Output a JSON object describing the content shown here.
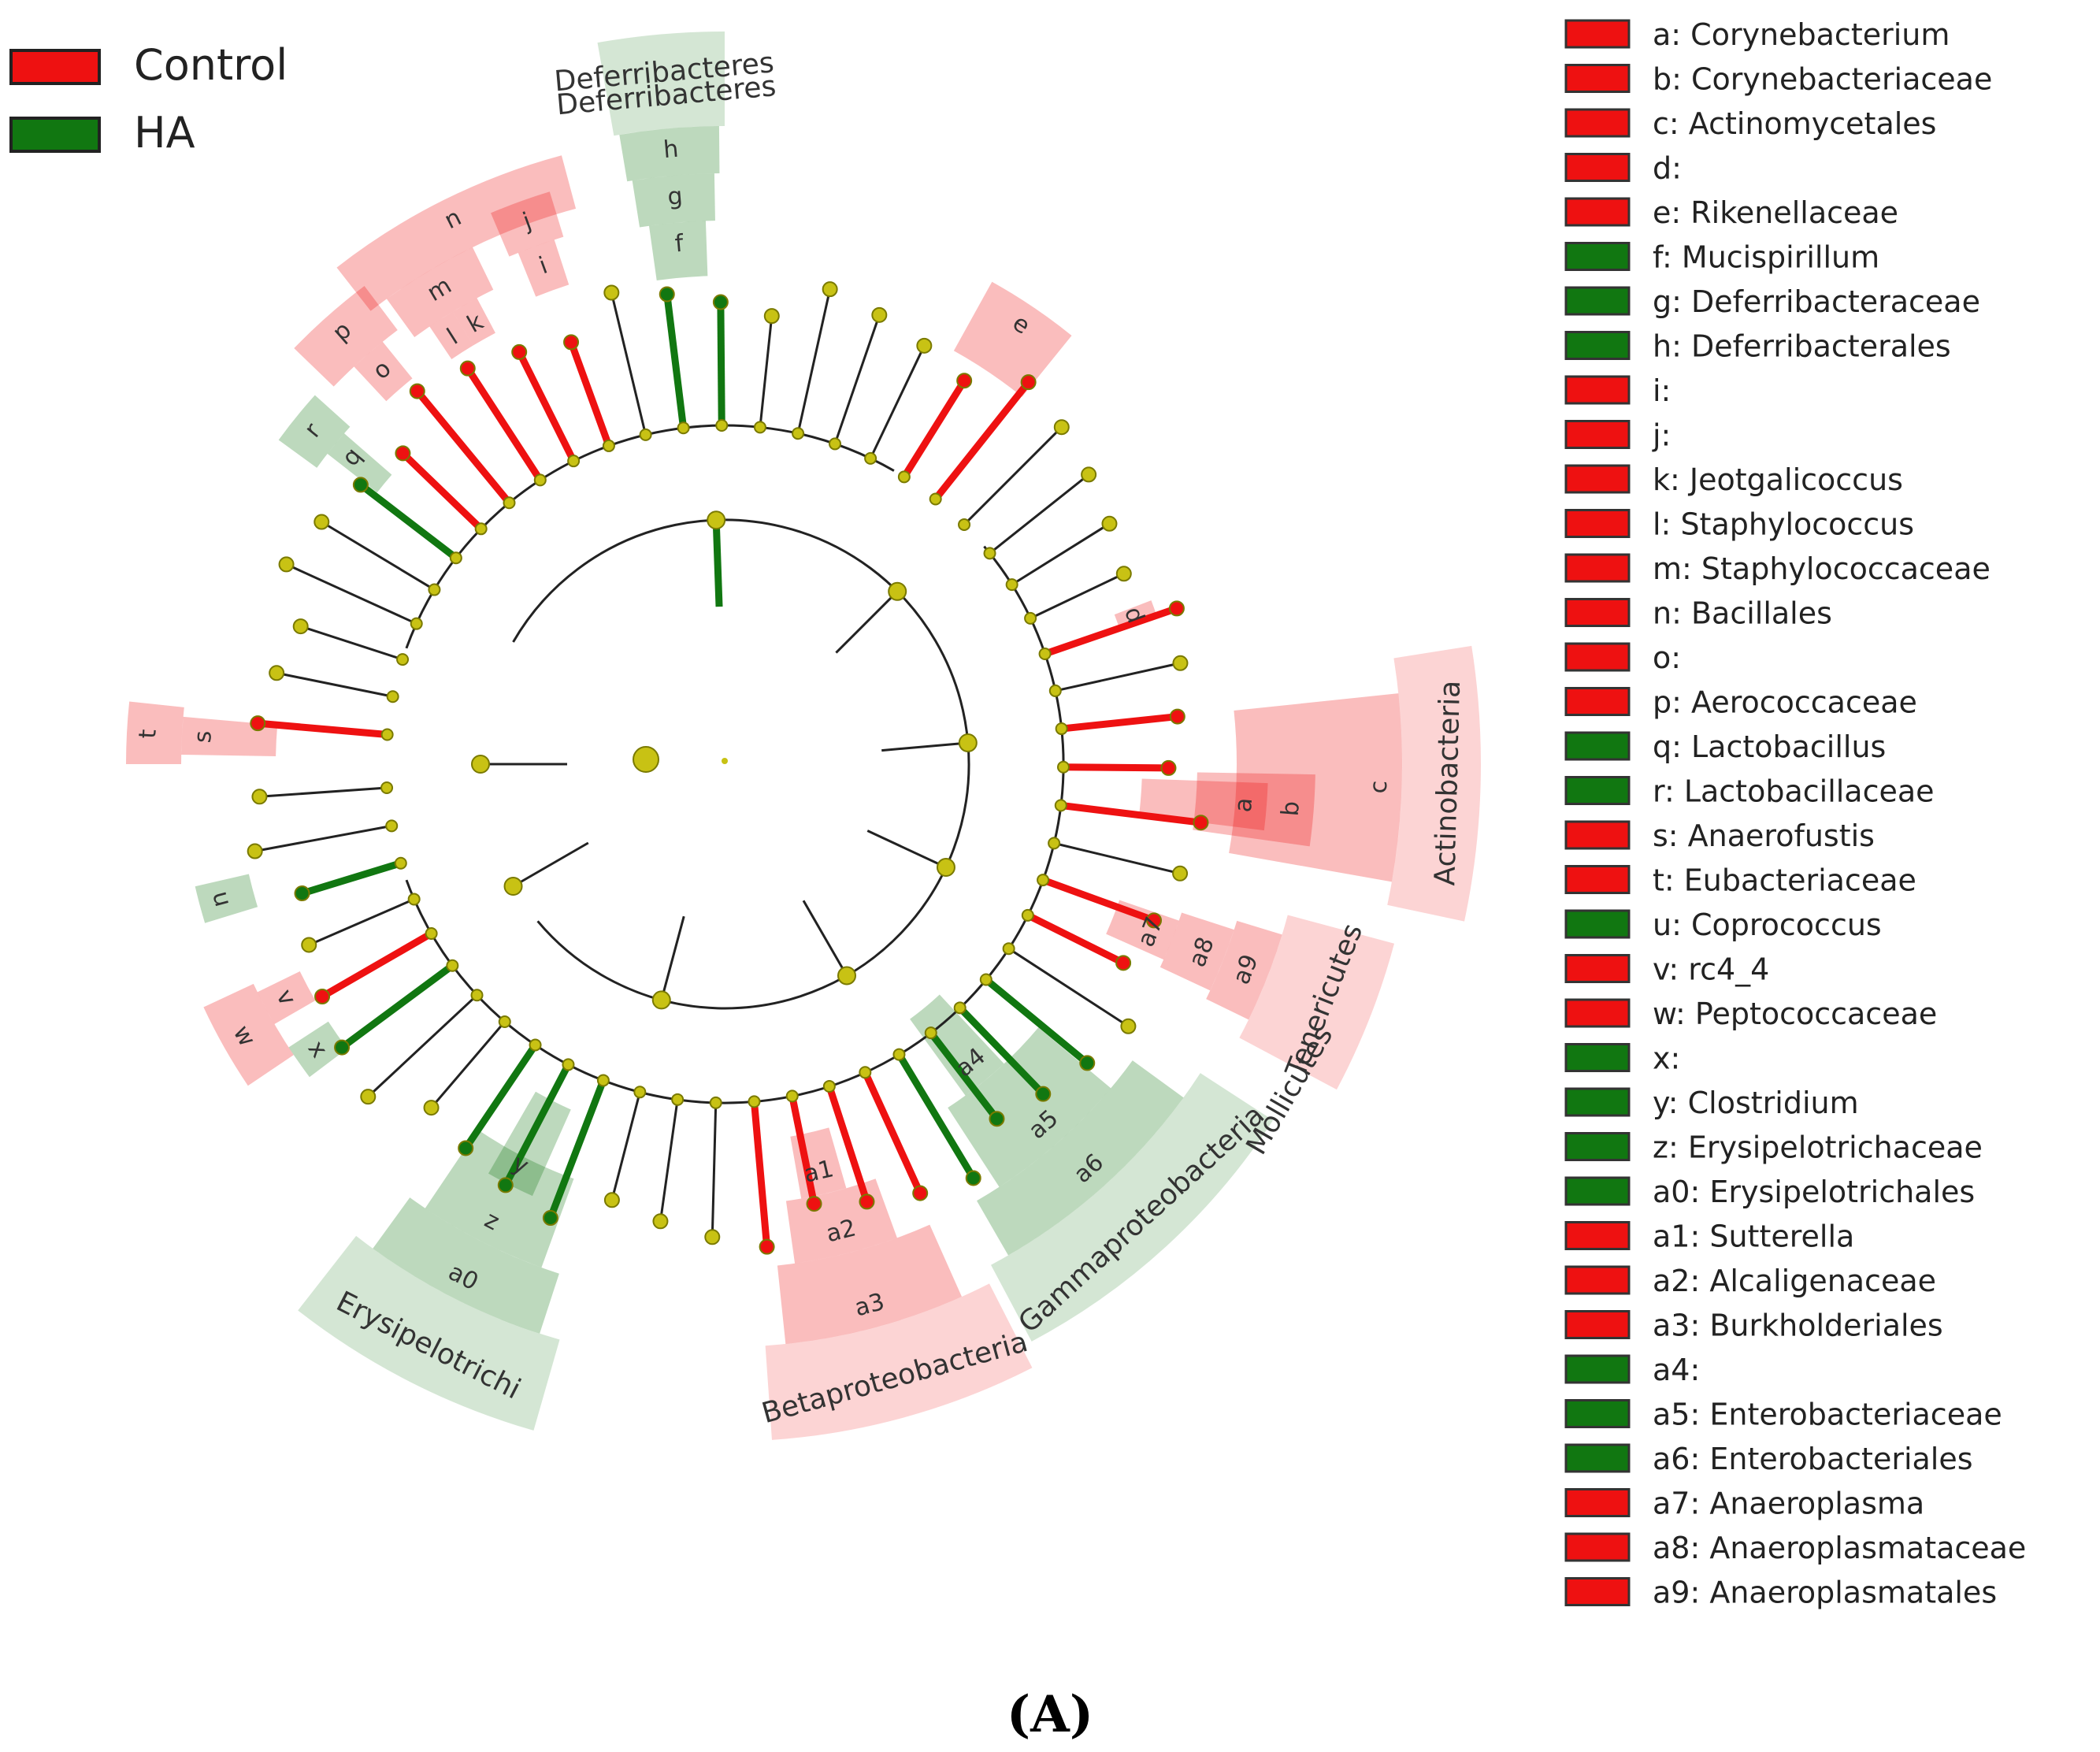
{
  "colors": {
    "control": "#ee1111",
    "ha": "#117711",
    "node": "#c8c214",
    "edge": "#222222",
    "node_stroke": "#7a7a00"
  },
  "group_legend": [
    {
      "label": "Control",
      "group": "control"
    },
    {
      "label": "HA",
      "group": "ha"
    }
  ],
  "taxa_key": [
    {
      "code": "a",
      "name": "Corynebacterium",
      "group": "control",
      "text": "a: Corynebacterium"
    },
    {
      "code": "b",
      "name": "Corynebacteriaceae",
      "group": "control",
      "text": "b: Corynebacteriaceae"
    },
    {
      "code": "c",
      "name": "Actinomycetales",
      "group": "control",
      "text": "c: Actinomycetales"
    },
    {
      "code": "d",
      "name": "",
      "group": "control",
      "text": "d:"
    },
    {
      "code": "e",
      "name": "Rikenellaceae",
      "group": "control",
      "text": "e: Rikenellaceae"
    },
    {
      "code": "f",
      "name": "Mucispirillum",
      "group": "ha",
      "text": "f: Mucispirillum"
    },
    {
      "code": "g",
      "name": "Deferribacteraceae",
      "group": "ha",
      "text": "g: Deferribacteraceae"
    },
    {
      "code": "h",
      "name": "Deferribacterales",
      "group": "ha",
      "text": "h: Deferribacterales"
    },
    {
      "code": "i",
      "name": "",
      "group": "control",
      "text": "i:"
    },
    {
      "code": "j",
      "name": "",
      "group": "control",
      "text": "j:"
    },
    {
      "code": "k",
      "name": "Jeotgalicoccus",
      "group": "control",
      "text": "k: Jeotgalicoccus"
    },
    {
      "code": "l",
      "name": "Staphylococcus",
      "group": "control",
      "text": "l: Staphylococcus"
    },
    {
      "code": "m",
      "name": "Staphylococcaceae",
      "group": "control",
      "text": "m: Staphylococcaceae"
    },
    {
      "code": "n",
      "name": "Bacillales",
      "group": "control",
      "text": "n: Bacillales"
    },
    {
      "code": "o",
      "name": "",
      "group": "control",
      "text": "o:"
    },
    {
      "code": "p",
      "name": "Aerococcaceae",
      "group": "control",
      "text": "p: Aerococcaceae"
    },
    {
      "code": "q",
      "name": "Lactobacillus",
      "group": "ha",
      "text": "q: Lactobacillus"
    },
    {
      "code": "r",
      "name": "Lactobacillaceae",
      "group": "ha",
      "text": "r: Lactobacillaceae"
    },
    {
      "code": "s",
      "name": "Anaerofustis",
      "group": "control",
      "text": "s: Anaerofustis"
    },
    {
      "code": "t",
      "name": "Eubacteriaceae",
      "group": "control",
      "text": "t: Eubacteriaceae"
    },
    {
      "code": "u",
      "name": "Coprococcus",
      "group": "ha",
      "text": "u: Coprococcus"
    },
    {
      "code": "v",
      "name": "rc4_4",
      "group": "control",
      "text": "v: rc4_4"
    },
    {
      "code": "w",
      "name": "Peptococcaceae",
      "group": "control",
      "text": "w: Peptococcaceae"
    },
    {
      "code": "x",
      "name": "",
      "group": "ha",
      "text": "x:"
    },
    {
      "code": "y",
      "name": "Clostridium",
      "group": "ha",
      "text": "y: Clostridium"
    },
    {
      "code": "z",
      "name": "Erysipelotrichaceae",
      "group": "ha",
      "text": "z: Erysipelotrichaceae"
    },
    {
      "code": "a0",
      "name": "Erysipelotrichales",
      "group": "ha",
      "text": "a0: Erysipelotrichales"
    },
    {
      "code": "a1",
      "name": "Sutterella",
      "group": "control",
      "text": "a1: Sutterella"
    },
    {
      "code": "a2",
      "name": "Alcaligenaceae",
      "group": "control",
      "text": "a2: Alcaligenaceae"
    },
    {
      "code": "a3",
      "name": "Burkholderiales",
      "group": "control",
      "text": "a3: Burkholderiales"
    },
    {
      "code": "a4",
      "name": "",
      "group": "ha",
      "text": "a4:"
    },
    {
      "code": "a5",
      "name": "Enterobacteriaceae",
      "group": "ha",
      "text": "a5: Enterobacteriaceae"
    },
    {
      "code": "a6",
      "name": "Enterobacteriales",
      "group": "ha",
      "text": "a6: Enterobacteriales"
    },
    {
      "code": "a7",
      "name": "Anaeroplasma",
      "group": "control",
      "text": "a7: Anaeroplasma"
    },
    {
      "code": "a8",
      "name": "Anaeroplasmataceae",
      "group": "control",
      "text": "a8: Anaeroplasmataceae"
    },
    {
      "code": "a9",
      "name": "Anaeroplasmatales",
      "group": "control",
      "text": "a9: Anaeroplasmatales"
    }
  ],
  "phylum_labels": {
    "deferribacteres_phylum": "Deferribacteres",
    "deferribacteres_class": "Deferribacteres",
    "actinobacteria": "Actinobacteria",
    "tenericutes": "Tenericutes",
    "mollicutes": "Mollicutes",
    "gammaproteobacteria": "Gammaproteobacteria",
    "betaproteobacteria": "Betaproteobacteria",
    "erysipelotrichi": "Erysipelotrichi"
  },
  "panel_label": "(A)"
}
